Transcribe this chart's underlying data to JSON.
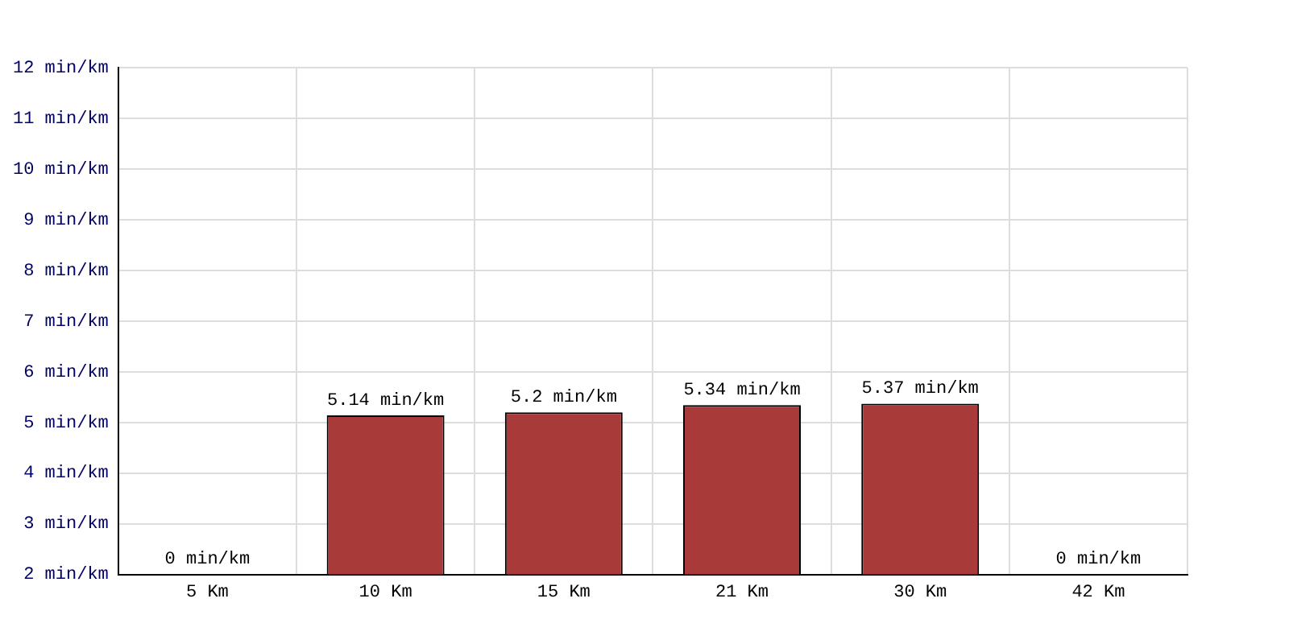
{
  "chart_data": {
    "type": "bar",
    "categories": [
      "5 Km",
      "10 Km",
      "15 Km",
      "21 Km",
      "30 Km",
      "42 Km"
    ],
    "values": [
      null,
      5.14,
      5.2,
      5.34,
      5.37,
      null
    ],
    "value_labels": [
      "0 min/km",
      "5.14 min/km",
      "5.2 min/km",
      "5.34 min/km",
      "5.37 min/km",
      "0 min/km"
    ],
    "color": "#a83a3a",
    "ylim": [
      2,
      12
    ],
    "yticks": [
      {
        "value": 2,
        "label": "2 min/km"
      },
      {
        "value": 3,
        "label": "3 min/km"
      },
      {
        "value": 4,
        "label": "4 min/km"
      },
      {
        "value": 5,
        "label": "5 min/km"
      },
      {
        "value": 6,
        "label": "6 min/km"
      },
      {
        "value": 7,
        "label": "7 min/km"
      },
      {
        "value": 8,
        "label": "8 min/km"
      },
      {
        "value": 9,
        "label": "9 min/km"
      },
      {
        "value": 10,
        "label": "10 min/km"
      },
      {
        "value": 11,
        "label": "11 min/km"
      },
      {
        "value": 12,
        "label": "12 min/km"
      }
    ],
    "grid": true,
    "legend": false
  }
}
